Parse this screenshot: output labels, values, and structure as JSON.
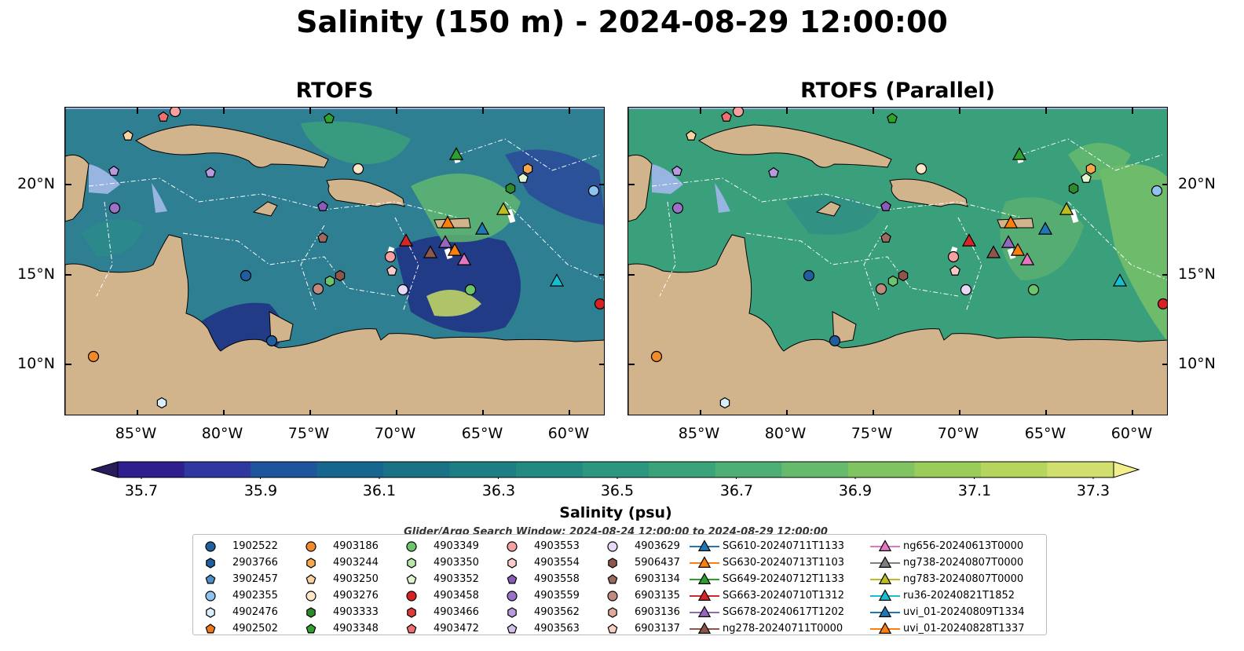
{
  "title": "Salinity (150 m) - 2024-08-29 12:00:00",
  "panels": [
    {
      "title": "RTOFS"
    },
    {
      "title": "RTOFS (Parallel)"
    }
  ],
  "lat_ticks": [
    "20°N",
    "15°N",
    "10°N"
  ],
  "lon_ticks": [
    "85°W",
    "80°W",
    "75°W",
    "70°W",
    "65°W",
    "60°W"
  ],
  "colorbar": {
    "label": "Salinity (psu)",
    "ticks": [
      "35.7",
      "35.9",
      "36.1",
      "36.3",
      "36.5",
      "36.7",
      "36.9",
      "37.1",
      "37.3"
    ],
    "colors": [
      "#2a1b5a",
      "#2e1e8e",
      "#2f37a0",
      "#1f559c",
      "#17668f",
      "#1a7285",
      "#1d7f83",
      "#238a82",
      "#2b977e",
      "#3aa379",
      "#4eaf74",
      "#66ba6c",
      "#80c462",
      "#9acc59",
      "#b5d55d",
      "#d0df6e",
      "#f3ef8c"
    ]
  },
  "search_window": "Glider/Argo Search Window: 2024-08-24 12:00:00 to 2024-08-29 12:00:00",
  "legend": {
    "columns": [
      [
        {
          "label": "1902522",
          "shape": "circle",
          "color": "#1f5fa0"
        },
        {
          "label": "2903766",
          "shape": "hexagon",
          "color": "#1f5fa0"
        },
        {
          "label": "3902457",
          "shape": "pentagon",
          "color": "#4f8fc8"
        },
        {
          "label": "4902355",
          "shape": "circle",
          "color": "#8fc2ee"
        },
        {
          "label": "4902476",
          "shape": "hexagon",
          "color": "#d9eefb"
        },
        {
          "label": "4902502",
          "shape": "pentagon",
          "color": "#f07818"
        }
      ],
      [
        {
          "label": "4903186",
          "shape": "circle",
          "color": "#f08a2a"
        },
        {
          "label": "4903244",
          "shape": "hexagon",
          "color": "#f6a84f"
        },
        {
          "label": "4903250",
          "shape": "pentagon",
          "color": "#fbd2a2"
        },
        {
          "label": "4903276",
          "shape": "circle",
          "color": "#fde6c8"
        },
        {
          "label": "4903333",
          "shape": "hexagon",
          "color": "#2c8c2c"
        },
        {
          "label": "4903348",
          "shape": "pentagon",
          "color": "#2fa12f"
        }
      ],
      [
        {
          "label": "4903349",
          "shape": "circle",
          "color": "#6cc46c"
        },
        {
          "label": "4903350",
          "shape": "hexagon",
          "color": "#b8e8a8"
        },
        {
          "label": "4903352",
          "shape": "pentagon",
          "color": "#dff5cf"
        },
        {
          "label": "4903458",
          "shape": "circle",
          "color": "#d62024"
        },
        {
          "label": "4903466",
          "shape": "hexagon",
          "color": "#e03a3a"
        },
        {
          "label": "4903472",
          "shape": "pentagon",
          "color": "#f07070"
        }
      ],
      [
        {
          "label": "4903553",
          "shape": "circle",
          "color": "#f7a0a0"
        },
        {
          "label": "4903554",
          "shape": "hexagon",
          "color": "#fccaca"
        },
        {
          "label": "4903558",
          "shape": "pentagon",
          "color": "#8a5cb8"
        },
        {
          "label": "4903559",
          "shape": "circle",
          "color": "#9a72c8"
        },
        {
          "label": "4903562",
          "shape": "hexagon",
          "color": "#b89ae0"
        },
        {
          "label": "4903563",
          "shape": "pentagon",
          "color": "#d4c2ee"
        }
      ],
      [
        {
          "label": "4903629",
          "shape": "circle",
          "color": "#e8d8f8"
        },
        {
          "label": "5906437",
          "shape": "hexagon",
          "color": "#8c564b"
        },
        {
          "label": "6903134",
          "shape": "pentagon",
          "color": "#9c6a5e"
        },
        {
          "label": "6903135",
          "shape": "circle",
          "color": "#c08a7e"
        },
        {
          "label": "6903136",
          "shape": "hexagon",
          "color": "#e0aa9a"
        },
        {
          "label": "6903137",
          "shape": "pentagon",
          "color": "#f8d0c4"
        }
      ],
      [
        {
          "label": "SG610-20240711T1133",
          "shape": "triangle",
          "color": "#1f77b4"
        },
        {
          "label": "SG630-20240713T1103",
          "shape": "triangle",
          "color": "#ff7f0e"
        },
        {
          "label": "SG649-20240712T1133",
          "shape": "triangle",
          "color": "#2ca02c"
        },
        {
          "label": "SG663-20240710T1312",
          "shape": "triangle",
          "color": "#d62728"
        },
        {
          "label": "SG678-20240617T1202",
          "shape": "triangle",
          "color": "#9467bd"
        },
        {
          "label": "ng278-20240711T0000",
          "shape": "triangle",
          "color": "#8c564b"
        }
      ],
      [
        {
          "label": "ng656-20240613T0000",
          "shape": "triangle",
          "color": "#e377c2"
        },
        {
          "label": "ng738-20240807T0000",
          "shape": "triangle",
          "color": "#7f7f7f"
        },
        {
          "label": "ng783-20240807T0000",
          "shape": "triangle",
          "color": "#bcbd22"
        },
        {
          "label": "ru36-20240821T1852",
          "shape": "triangle",
          "color": "#17becf"
        },
        {
          "label": "uvi_01-20240809T1334",
          "shape": "triangle",
          "color": "#1f77b4"
        },
        {
          "label": "uvi_01-20240828T1337",
          "shape": "triangle",
          "color": "#ff7f0e"
        }
      ]
    ]
  },
  "map_colors": {
    "land": "#d2b48c",
    "shallow": "#98b4e0",
    "pacific": "#2a1b5a",
    "rtofs_ocean": "#2f7f93",
    "parallel_ocean": "#3aa07c"
  }
}
